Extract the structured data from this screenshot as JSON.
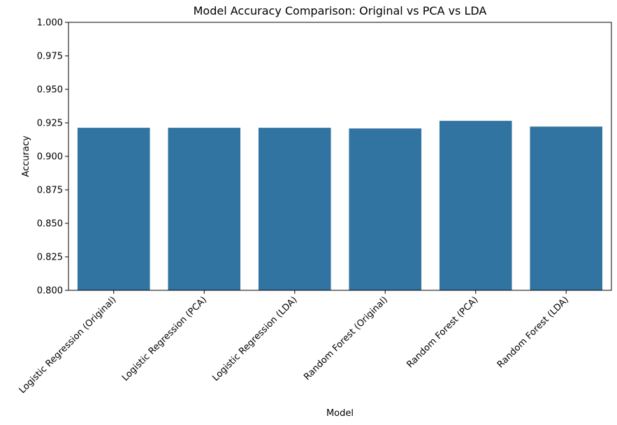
{
  "chart_data": {
    "type": "bar",
    "title": "Model Accuracy Comparison: Original vs PCA vs LDA",
    "xlabel": "Model",
    "ylabel": "Accuracy",
    "ylim": [
      0.8,
      1.0
    ],
    "yticks": [
      "0.800",
      "0.825",
      "0.850",
      "0.875",
      "0.900",
      "0.925",
      "0.950",
      "0.975",
      "1.000"
    ],
    "categories": [
      "Logistic Regression (Original)",
      "Logistic Regression (PCA)",
      "Logistic Regression (LDA)",
      "Random Forest (Original)",
      "Random Forest (PCA)",
      "Random Forest (LDA)"
    ],
    "values": [
      0.9213,
      0.9213,
      0.9213,
      0.9208,
      0.9265,
      0.9222
    ],
    "bar_color": "#3274a1",
    "grid": false,
    "legend": "none"
  }
}
